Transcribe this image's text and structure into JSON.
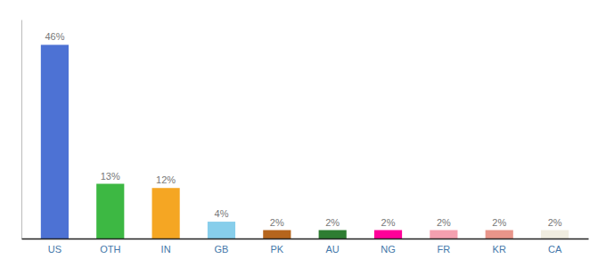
{
  "chart_data": {
    "type": "bar",
    "categories": [
      "US",
      "OTH",
      "IN",
      "GB",
      "PK",
      "AU",
      "NG",
      "FR",
      "KR",
      "CA"
    ],
    "values": [
      46,
      13,
      12,
      4,
      2,
      2,
      2,
      2,
      2,
      2
    ],
    "value_labels": [
      "46%",
      "13%",
      "12%",
      "4%",
      "2%",
      "2%",
      "2%",
      "2%",
      "2%",
      "2%"
    ],
    "colors": [
      "#4d72d4",
      "#3db843",
      "#f5a623",
      "#87ceeb",
      "#b5651d",
      "#2e7d32",
      "#ff0099",
      "#f4a0b0",
      "#e8958a",
      "#f0ede0"
    ],
    "ylim": [
      0,
      52
    ],
    "data_labels": true,
    "tick_labels": "x",
    "grid": false
  }
}
